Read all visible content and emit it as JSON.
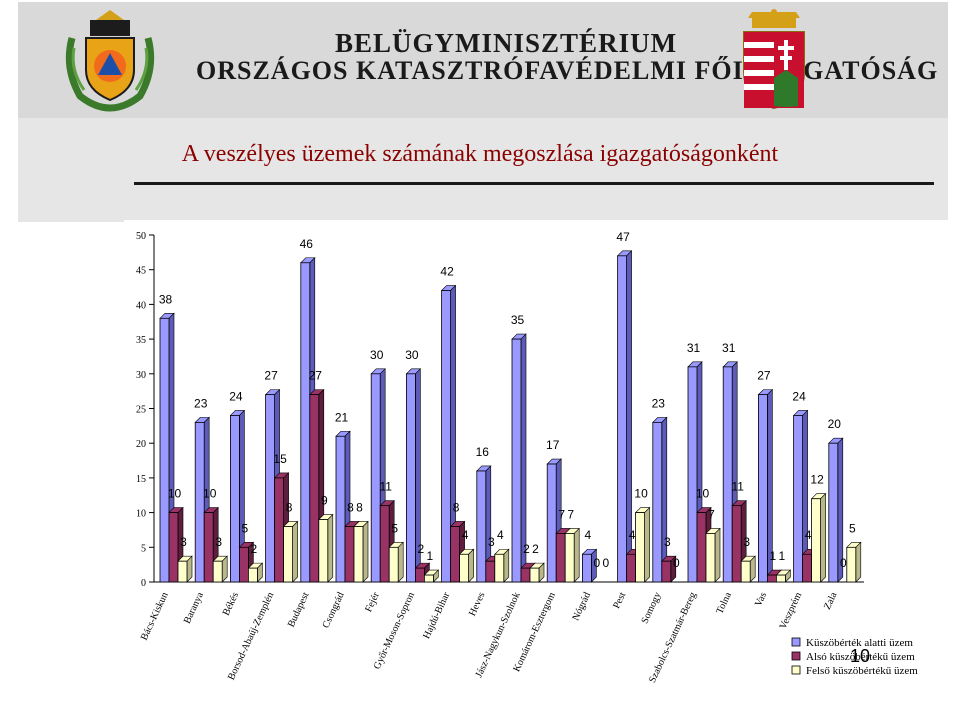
{
  "header": {
    "ministry_line1": "BELÜGYMINISZTÉRIUM",
    "ministry_line2": "ORSZÁGOS KATASZTRÓFAVÉDELMI FŐIGAZGATÓSÁG"
  },
  "title": "A veszélyes üzemek számának megoszlása igazgatóságonként",
  "page_number": "10",
  "colors": {
    "series1": "#9999ff",
    "series2": "#993366",
    "series3": "#ffffcc",
    "title": "#8b0000"
  },
  "chart_data": {
    "type": "bar",
    "title": "",
    "xlabel": "",
    "ylabel": "",
    "ylim": [
      0,
      50
    ],
    "yticks": [
      0,
      5,
      10,
      15,
      20,
      25,
      30,
      35,
      40,
      45,
      50
    ],
    "grid": false,
    "legend_position": "bottom-right",
    "categories": [
      "Bács-Kiskun",
      "Baranya",
      "Békés",
      "Borsod-Abaúj-Zemplén",
      "Budapest",
      "Csongrád",
      "Fejér",
      "Győr-Moson-Sopron",
      "Hajdú-Bihar",
      "Heves",
      "Jász-Nagykun-Szolnok",
      "Komárom-Esztergom",
      "Nógrád",
      "Pest",
      "Somogy",
      "Szabolcs-Szatmár-Bereg",
      "Tolna",
      "Vas",
      "Veszprém",
      "Zala"
    ],
    "series": [
      {
        "name": "Küszöbérték alatti üzem",
        "values": [
          38,
          23,
          24,
          27,
          46,
          21,
          30,
          30,
          42,
          16,
          35,
          17,
          4,
          47,
          23,
          31,
          31,
          27,
          24,
          20
        ]
      },
      {
        "name": "Alsó küszöbértékű üzem",
        "values": [
          10,
          10,
          5,
          15,
          27,
          8,
          11,
          2,
          8,
          3,
          2,
          7,
          0,
          4,
          3,
          10,
          11,
          1,
          4,
          0
        ]
      },
      {
        "name": "Felső küszöbértékű üzem",
        "values": [
          3,
          3,
          2,
          8,
          9,
          8,
          5,
          1,
          4,
          4,
          2,
          7,
          0,
          10,
          0,
          7,
          3,
          1,
          12,
          5
        ]
      }
    ]
  }
}
